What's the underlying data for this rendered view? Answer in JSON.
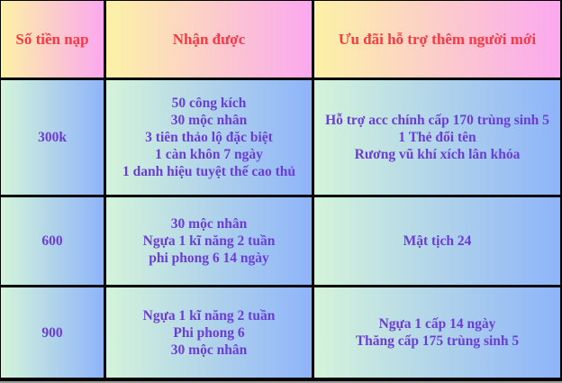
{
  "table": {
    "headers": [
      "Số tiền nạp",
      "Nhận được",
      "Ưu đãi hỗ trợ thêm người mới"
    ],
    "rows": [
      {
        "amount": "300k",
        "rewards": [
          "50 công kích",
          "30 mộc nhân",
          "3 tiên thảo lộ đặc biệt",
          "1 càn khôn 7 ngày",
          "1 danh hiệu tuyệt thế cao thủ"
        ],
        "bonus": [
          "Hỗ trợ acc chính cấp 170 trùng sinh 5",
          "1 Thẻ đổi tên",
          "Rương vũ khí xích lân khóa"
        ]
      },
      {
        "amount": "600",
        "rewards": [
          "30 mộc nhân",
          "Ngựa 1 kĩ năng 2 tuần",
          "phi phong 6 14 ngày"
        ],
        "bonus": [
          "Mật tịch 24"
        ]
      },
      {
        "amount": "900",
        "rewards": [
          "Ngựa 1 kĩ năng 2 tuần",
          "Phi phong 6",
          "30 mộc nhân"
        ],
        "bonus": [
          "Ngựa 1 cấp 14 ngày",
          "Thăng cấp 175 trùng sinh 5"
        ]
      }
    ],
    "colors": {
      "header_text": "#fa3742",
      "body_text": "#6c3cd6",
      "header_grad_start": "#fcf2a6",
      "header_grad_end": "#fba8ef",
      "cell_grad_start": "#d4f4da",
      "cell_grad_end": "#8eb4fa",
      "border": "#060606",
      "bottom_edge": "#9c9c9c"
    }
  }
}
